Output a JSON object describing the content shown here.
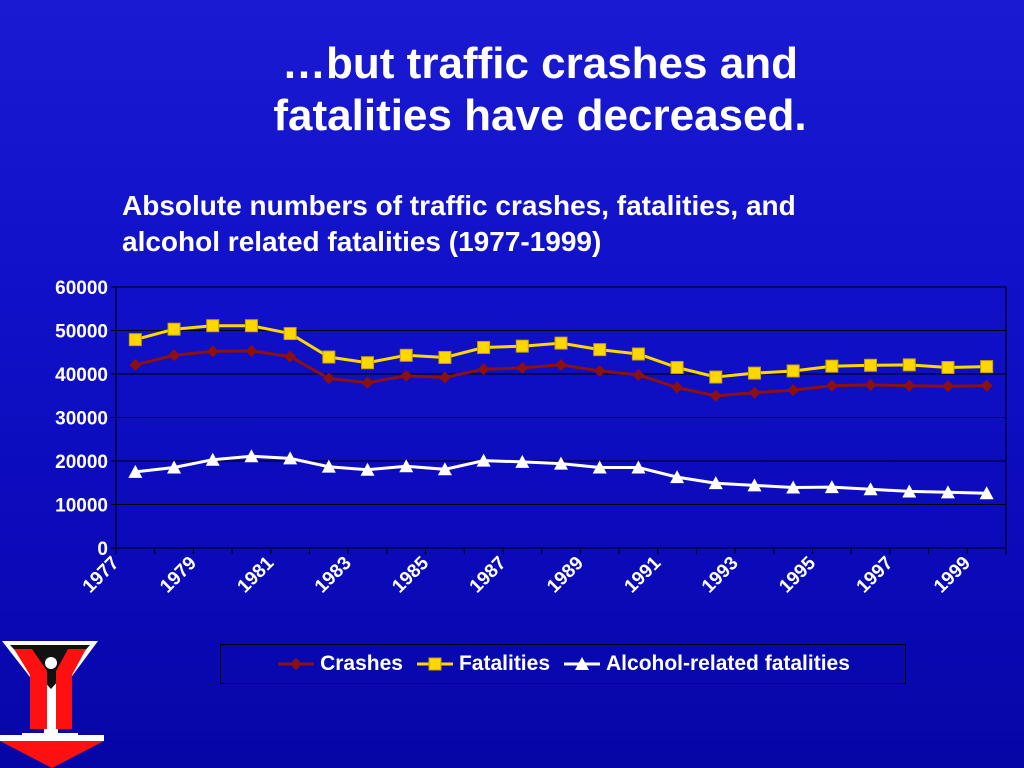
{
  "slide": {
    "title_line1": "…but traffic crashes and",
    "title_line2": "fatalities have decreased."
  },
  "chart_data": {
    "type": "line",
    "title_line1": "Absolute numbers of traffic crashes, fatalities, and",
    "title_line2": "alcohol related fatalities (1977-1999)",
    "x": [
      1977,
      1978,
      1979,
      1980,
      1981,
      1982,
      1983,
      1984,
      1985,
      1986,
      1987,
      1988,
      1989,
      1990,
      1991,
      1992,
      1993,
      1994,
      1995,
      1996,
      1997,
      1998,
      1999
    ],
    "x_tick_labels": [
      "1977",
      "1979",
      "1981",
      "1983",
      "1985",
      "1987",
      "1989",
      "1991",
      "1993",
      "1995",
      "1997",
      "1999"
    ],
    "y_tick_labels": [
      "0",
      "10000",
      "20000",
      "30000",
      "40000",
      "50000",
      "60000"
    ],
    "ylim": [
      0,
      60000
    ],
    "grid": "horizontal",
    "legend_position": "bottom",
    "series": [
      {
        "name": "Crashes",
        "color": "#8b1010",
        "marker": "diamond",
        "values": [
          42100,
          44300,
          45200,
          45300,
          44000,
          39000,
          38000,
          39600,
          39200,
          41100,
          41400,
          42100,
          40700,
          39800,
          36900,
          35000,
          35700,
          36300,
          37300,
          37500,
          37300,
          37200,
          37300
        ]
      },
      {
        "name": "Fatalities",
        "color": "#ffd700",
        "marker": "square",
        "values": [
          47900,
          50300,
          51100,
          51100,
          49300,
          43900,
          42600,
          44300,
          43800,
          46100,
          46400,
          47100,
          45600,
          44600,
          41500,
          39300,
          40200,
          40700,
          41800,
          42000,
          42100,
          41500,
          41700
        ]
      },
      {
        "name": "Alcohol-related fatalities",
        "color": "#ffffff",
        "marker": "triangle",
        "values": [
          17500,
          18500,
          20300,
          21100,
          20600,
          18700,
          18000,
          18800,
          18100,
          20100,
          19800,
          19400,
          18500,
          18500,
          16300,
          14900,
          14400,
          13900,
          14000,
          13500,
          13000,
          12800,
          12600
        ]
      }
    ]
  },
  "colors": {
    "background": "#1010c8",
    "plot_border": "#000000",
    "crashes": "#8b1010",
    "fatalities": "#ffd700",
    "alcohol": "#ffffff"
  },
  "logo": {
    "icon": "martini-glass-logo-icon"
  }
}
